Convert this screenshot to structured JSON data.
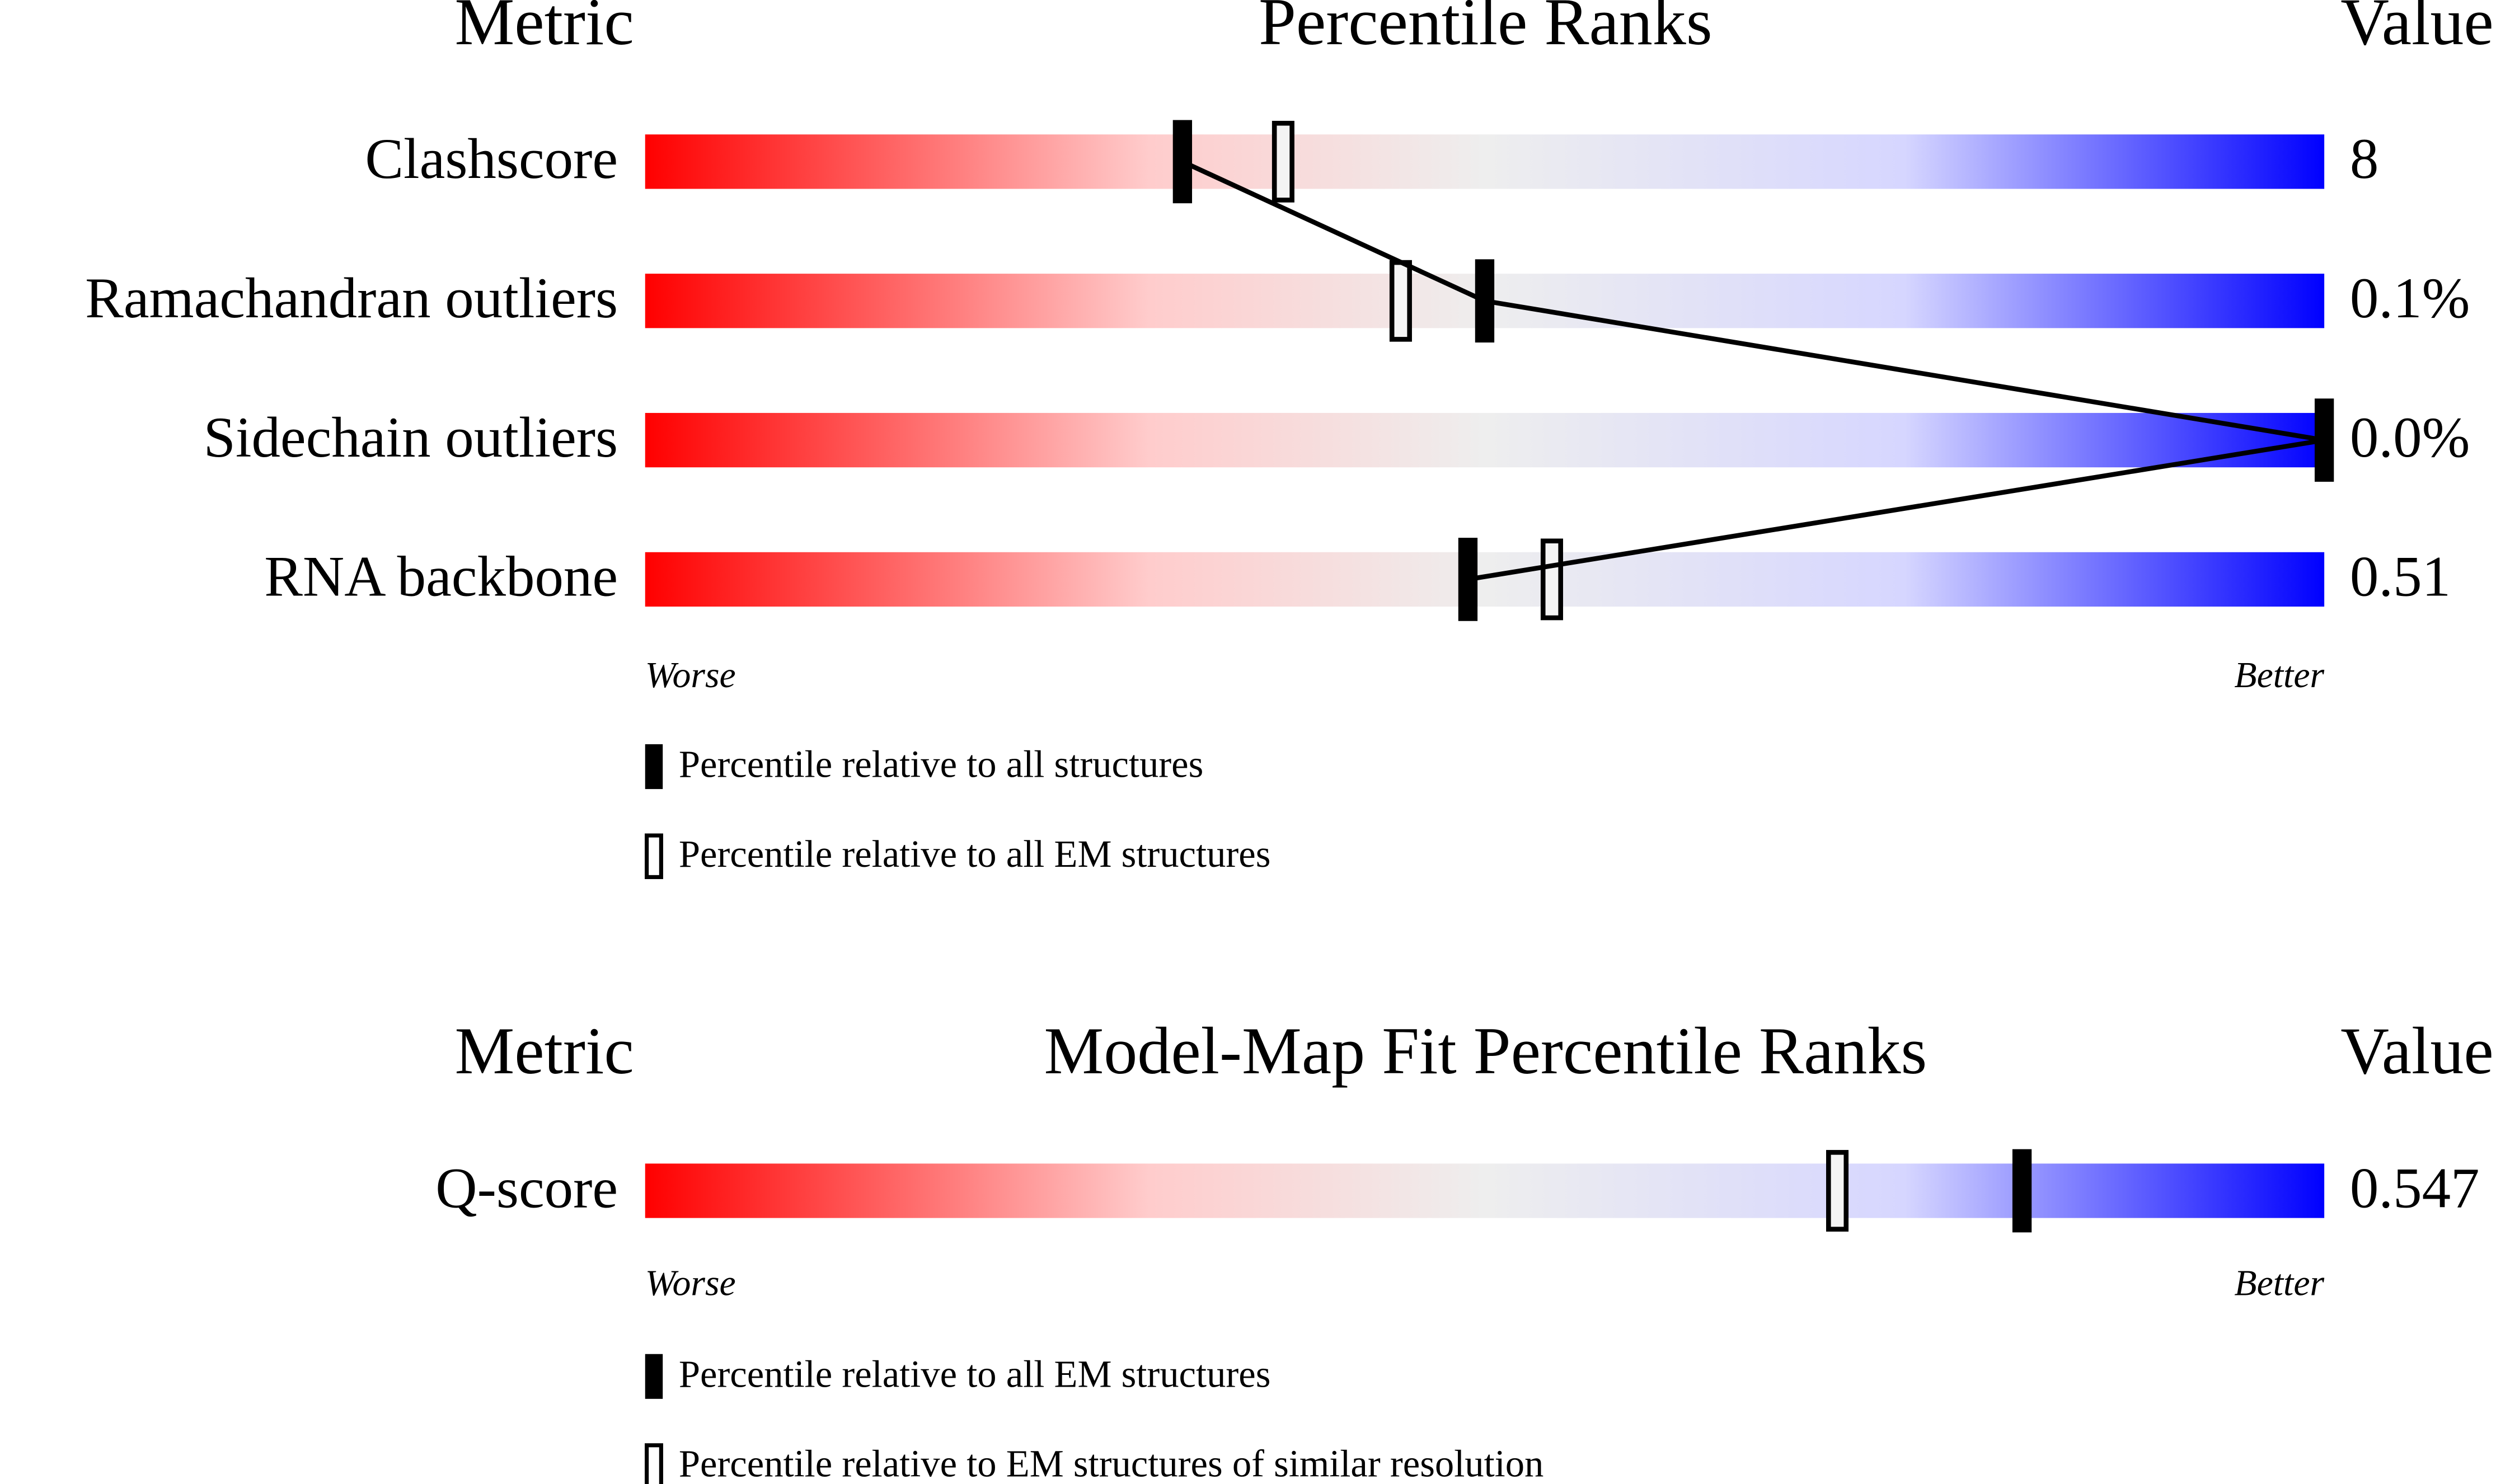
{
  "panels": [
    {
      "headers": {
        "metric": "Metric",
        "title": "Percentile Ranks",
        "value": "Value"
      },
      "rows": [
        {
          "metric": "Clashscore",
          "value": "8",
          "percentile_all": 32,
          "percentile_em": 38
        },
        {
          "metric": "Ramachandran outliers",
          "value": "0.1%",
          "percentile_all": 50,
          "percentile_em": 45
        },
        {
          "metric": "Sidechain outliers",
          "value": "0.0%",
          "percentile_all": 100
        },
        {
          "metric": "RNA backbone",
          "value": "0.51",
          "percentile_all": 49,
          "percentile_em": 54
        }
      ],
      "worse": "Worse",
      "better": "Better",
      "legend": {
        "filled": "Percentile relative to all structures",
        "open": "Percentile relative to all EM structures"
      }
    },
    {
      "headers": {
        "metric": "Metric",
        "title": "Model-Map Fit Percentile Ranks",
        "value": "Value"
      },
      "rows": [
        {
          "metric": "Q-score",
          "value": "0.547",
          "percentile_all": 82,
          "percentile_em": 71
        }
      ],
      "worse": "Worse",
      "better": "Better",
      "legend": {
        "filled": "Percentile relative to all EM structures",
        "open": "Percentile relative to EM structures of similar resolution"
      }
    }
  ]
}
